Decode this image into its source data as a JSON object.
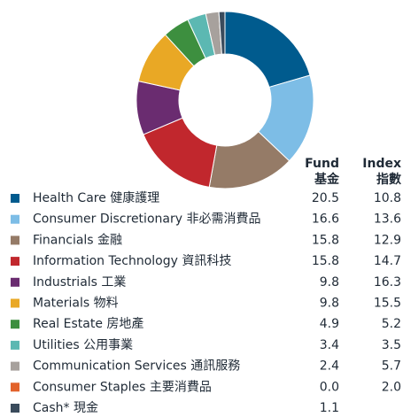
{
  "chart_data": {
    "type": "pie",
    "donut": true,
    "categories": [
      "Health Care 健康護理",
      "Consumer Discretionary 非必需消費品",
      "Financials 金融",
      "Information Technology 資訊科技",
      "Industrials 工業",
      "Materials 物料",
      "Real Estate 房地產",
      "Utilities 公用事業",
      "Communication Services 通訊服務",
      "Consumer Staples 主要消費品",
      "Cash* 現金"
    ],
    "colors": [
      "#005b8e",
      "#7dbde6",
      "#957b67",
      "#c1272d",
      "#6a2c70",
      "#e9a825",
      "#3d8f3f",
      "#5cb8b2",
      "#a7a19d",
      "#e2622b",
      "#3a4b5c"
    ],
    "series": [
      {
        "name": "Fund",
        "name_zh": "基金",
        "values": [
          20.5,
          16.6,
          15.8,
          15.8,
          9.8,
          9.8,
          4.9,
          3.4,
          2.4,
          0.0,
          1.1
        ],
        "value_labels": [
          "20.5",
          "16.6",
          "15.8",
          "15.8",
          "9.8",
          "9.8",
          "4.9",
          "3.4",
          "2.4",
          "0.0",
          "1.1"
        ]
      },
      {
        "name": "Index",
        "name_zh": "指數",
        "values": [
          10.8,
          13.6,
          12.9,
          14.7,
          16.3,
          15.5,
          5.2,
          3.5,
          5.7,
          2.0,
          null
        ],
        "value_labels": [
          "10.8",
          "13.6",
          "12.9",
          "14.7",
          "16.3",
          "15.5",
          "5.2",
          "3.5",
          "5.7",
          "2.0",
          null
        ]
      }
    ]
  }
}
